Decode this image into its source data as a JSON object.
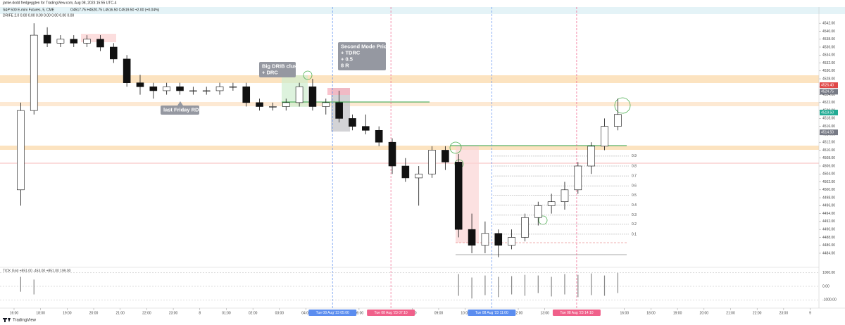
{
  "header": {
    "author": "jamie.dodd fredgeggten for TradingView.com, Aug 08, 2023 15:55 UTC-4",
    "symbol": "S&P 500 E-mini Futures, 5, CME",
    "ohlc": "O4517.75 H4520.75 L4516.50 C4519.50 +2.00 (+0.04%)",
    "indicator": "DRIFE 2.0  0.00  0.00  0.00  0.00  0.00  0.00  0.00",
    "footer": "TradingView"
  },
  "chart_data": {
    "type": "candlestick",
    "x": [
      0.25,
      0.75,
      1.25,
      1.75,
      2.25,
      2.75,
      3.25,
      3.75,
      4.25,
      4.75,
      5.25,
      5.75,
      6.25,
      6.75,
      7.25,
      7.75,
      8.25,
      8.75,
      9.25,
      9.75,
      10.25,
      10.75,
      11.25,
      11.75,
      12.25,
      12.75,
      13.25,
      13.75,
      14.25,
      14.75,
      15.25,
      15.75,
      16.25,
      16.75,
      17.25,
      17.75,
      18.25,
      18.75,
      19.25,
      19.75,
      20.25,
      20.75,
      21.25,
      21.75,
      22.25,
      22.75
    ],
    "open": [
      4500,
      4520,
      4539,
      4537,
      4538,
      4537,
      4538,
      4536,
      4533,
      4527,
      4526,
      4525,
      4526,
      4525,
      4525,
      4525,
      4526,
      4526,
      4522,
      4521,
      4521,
      4522,
      4526,
      4521,
      4522,
      4518,
      4516,
      4515,
      4512,
      4506,
      4503,
      4504,
      4510,
      4507,
      4490,
      4486,
      4489,
      4486,
      4488,
      4493,
      4496,
      4497,
      4500,
      4506,
      4511,
      4516
    ],
    "high": [
      4522,
      4542,
      4541,
      4539,
      4539,
      4539,
      4539,
      4537,
      4534,
      4529,
      4527,
      4527,
      4527,
      4526,
      4526,
      4527,
      4527,
      4527,
      4523,
      4522,
      4523,
      4527,
      4528,
      4523,
      4525,
      4519,
      4519,
      4516,
      4513,
      4508,
      4506,
      4511,
      4511,
      4509,
      4494,
      4492,
      4490,
      4490,
      4494,
      4497,
      4499,
      4502,
      4507,
      4512,
      4518,
      4523
    ],
    "low": [
      4496,
      4519,
      4536,
      4536,
      4536,
      4536,
      4535,
      4532,
      4526,
      4524,
      4523,
      4524,
      4524,
      4524,
      4524,
      4524,
      4525,
      4521,
      4520,
      4520,
      4520,
      4521,
      4520,
      4519,
      4517,
      4515,
      4514,
      4511,
      4504,
      4502,
      4496,
      4503,
      4505,
      4488,
      4484,
      4484,
      4483,
      4485,
      4487,
      4491,
      4494,
      4495,
      4499,
      4504,
      4510,
      4515
    ],
    "close": [
      4520,
      4539,
      4537,
      4538,
      4537,
      4538,
      4536,
      4533,
      4527,
      4526,
      4525,
      4526,
      4525,
      4525,
      4525,
      4526,
      4526,
      4522,
      4521,
      4521,
      4522,
      4526,
      4521,
      4522,
      4518,
      4516,
      4515,
      4512,
      4506,
      4503,
      4504,
      4510,
      4507,
      4490,
      4486,
      4489,
      4486,
      4488,
      4493,
      4496,
      4497,
      4500,
      4506,
      4511,
      4516,
      4519
    ],
    "ylim": [
      4480.8,
      4545.4
    ],
    "yticks": [
      {
        "value": 4484,
        "label": "4484.00"
      },
      {
        "value": 4486,
        "label": "4486.00"
      },
      {
        "value": 4488,
        "label": "4488.00"
      },
      {
        "value": 4490,
        "label": "4490.00"
      },
      {
        "value": 4492,
        "label": "4492.00"
      },
      {
        "value": 4494,
        "label": "4494.00"
      },
      {
        "value": 4496,
        "label": "4496.00"
      },
      {
        "value": 4498,
        "label": "4498.00"
      },
      {
        "value": 4500,
        "label": "4500.00"
      },
      {
        "value": 4502,
        "label": "4502.00"
      },
      {
        "value": 4504,
        "label": "4504.00"
      },
      {
        "value": 4506,
        "label": "4506.00"
      },
      {
        "value": 4508,
        "label": "4508.00"
      },
      {
        "value": 4510,
        "label": "4510.00"
      },
      {
        "value": 4512,
        "label": "4512.00"
      },
      {
        "value": 4514,
        "label": "4514.00"
      },
      {
        "value": 4516,
        "label": "4516.00"
      },
      {
        "value": 4518,
        "label": "4518.00"
      },
      {
        "value": 4520,
        "label": "4520.00"
      },
      {
        "value": 4522,
        "label": "4522.00"
      },
      {
        "value": 4524,
        "label": "4524.00"
      },
      {
        "value": 4526,
        "label": "4526.00"
      },
      {
        "value": 4528,
        "label": "4528.00"
      },
      {
        "value": 4530,
        "label": "4530.00"
      },
      {
        "value": 4532,
        "label": "4532.00"
      },
      {
        "value": 4534,
        "label": "4534.00"
      },
      {
        "value": 4536,
        "label": "4536.00"
      },
      {
        "value": 4538,
        "label": "4538.00"
      },
      {
        "value": 4540,
        "label": "4540.00"
      },
      {
        "value": 4542,
        "label": "4542.00"
      }
    ],
    "xlim": [
      -0.53,
      30.33
    ],
    "xticks": [
      {
        "value": 0,
        "label": "16:00"
      },
      {
        "value": 1,
        "label": "18:00"
      },
      {
        "value": 2,
        "label": "19:00"
      },
      {
        "value": 3,
        "label": "20:00"
      },
      {
        "value": 4,
        "label": "21:00"
      },
      {
        "value": 5,
        "label": "22:00"
      },
      {
        "value": 6,
        "label": "23:00"
      },
      {
        "value": 7,
        "label": "8"
      },
      {
        "value": 8,
        "label": "01:00"
      },
      {
        "value": 9,
        "label": "02:00"
      },
      {
        "value": 10,
        "label": "03:00"
      },
      {
        "value": 11,
        "label": "04:00"
      },
      {
        "value": 13,
        "label": "06:00"
      },
      {
        "value": 15,
        "label": "08:00"
      },
      {
        "value": 16,
        "label": "09:00"
      },
      {
        "value": 17,
        "label": "10:00"
      },
      {
        "value": 19,
        "label": "12:00"
      },
      {
        "value": 20,
        "label": "13:00"
      },
      {
        "value": 23,
        "label": "16:00"
      },
      {
        "value": 24,
        "label": "18:00"
      },
      {
        "value": 25,
        "label": "19:00"
      },
      {
        "value": 26,
        "label": "20:00"
      },
      {
        "value": 27,
        "label": "21:00"
      },
      {
        "value": 28,
        "label": "22:00"
      },
      {
        "value": 29,
        "label": "23:00"
      },
      {
        "value": 30,
        "label": "9"
      }
    ],
    "markers": [
      {
        "x": 12.0,
        "label": "Tue 08 Aug '23 05:00",
        "color": "#5b8def"
      },
      {
        "x": 14.2,
        "label": "Tue 08 Aug '23 07:10",
        "color": "#f0608a"
      },
      {
        "x": 18.0,
        "label": "Tue 08 Aug '23 11:00",
        "color": "#5b8def"
      },
      {
        "x": 21.2,
        "label": "Tue 08 Aug '23 14:10",
        "color": "#f0608a"
      }
    ],
    "price_tags": [
      {
        "value": 4526.4,
        "label": "4526.40",
        "color": "#e04848"
      },
      {
        "value": 4524.75,
        "label": "4524.75",
        "color": "#787b86"
      },
      {
        "value": 4519.5,
        "label": "4519.50",
        "color": "#22ab94"
      },
      {
        "value": 4514.5,
        "label": "4514.50",
        "color": "#787b86"
      }
    ],
    "fib_levels": [
      {
        "value": 4508.5,
        "label": "0.9"
      },
      {
        "value": 4506.0,
        "label": "0.8"
      },
      {
        "value": 4503.5,
        "label": "0.7"
      },
      {
        "value": 4501.0,
        "label": "0.6"
      },
      {
        "value": 4498.6,
        "label": "0.5"
      },
      {
        "value": 4496.1,
        "label": "0.4"
      },
      {
        "value": 4493.6,
        "label": "0.3"
      },
      {
        "value": 4491.3,
        "label": "0.2"
      },
      {
        "value": 4488.8,
        "label": "0.1"
      }
    ],
    "annotations": [
      {
        "lines": [
          "Big DRIB cluster",
          "+ DRC"
        ]
      },
      {
        "lines": [
          "Second Mode Price",
          "+ TDRC",
          "+ 0.5",
          "8 R"
        ]
      },
      {
        "lines": [
          "last Friday RDR"
        ]
      }
    ],
    "tick_pane": {
      "title": "TICK Grid  +851.00  -453.00  +851.00  199.00",
      "x": [
        0.25,
        0.75,
        16.75,
        17.25,
        17.75,
        18.25,
        18.75,
        19.25,
        19.75,
        20.25,
        20.75,
        21.25,
        21.75,
        22.25,
        22.75
      ],
      "high": [
        700,
        500,
        900,
        650,
        800,
        700,
        750,
        850,
        800,
        700,
        900,
        850,
        950,
        800,
        1000
      ],
      "low": [
        -400,
        -600,
        -700,
        -900,
        -650,
        -800,
        -600,
        -700,
        -500,
        -750,
        -600,
        -800,
        -650,
        -700,
        -500
      ],
      "ylim": [
        -1300,
        1300
      ],
      "yticks": [
        {
          "value": 1000,
          "label": "1000.00"
        },
        {
          "value": 0,
          "label": "0.00"
        },
        {
          "value": -1000,
          "label": "-1000.00"
        }
      ]
    }
  }
}
